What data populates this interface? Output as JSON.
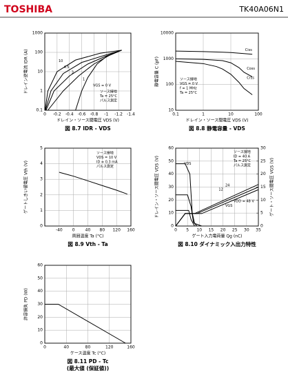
{
  "header": {
    "brand": "TOSHIBA",
    "part": "TK40A06N1"
  },
  "chart_data": [
    {
      "type": "line",
      "title": "図 8.7  IDR - VDS",
      "x_label": "ドレイン・ソース間電圧  VDS  (V)",
      "y_label": "ドレイン逆電流  IDR  (A)",
      "xlim": [
        0,
        -1.4
      ],
      "xticks": [
        0,
        -0.2,
        -0.4,
        -0.6,
        -0.8,
        -1,
        -1.2,
        -1.4
      ],
      "ylim": [
        0.1,
        1000
      ],
      "yticks": [
        0.1,
        1,
        10,
        100,
        1000
      ],
      "ylog": true,
      "grid": true,
      "series": [
        {
          "color": "#000000",
          "x": [
            -0.005,
            -0.05,
            -0.2,
            -0.5,
            -0.9,
            -1.25
          ],
          "y": [
            0.1,
            1,
            10,
            40,
            90,
            130
          ]
        },
        {
          "color": "#000000",
          "x": [
            -0.01,
            -0.1,
            -0.3,
            -0.6,
            -1.0,
            -1.25
          ],
          "y": [
            0.1,
            1,
            8,
            30,
            75,
            130
          ]
        },
        {
          "color": "#000000",
          "x": [
            -0.02,
            -0.15,
            -0.4,
            -0.7,
            -1.0,
            -1.25
          ],
          "y": [
            0.1,
            1,
            6,
            25,
            65,
            130
          ]
        },
        {
          "color": "#000000",
          "x": [
            -0.05,
            -0.3,
            -0.55,
            -0.8,
            -1.05,
            -1.25
          ],
          "y": [
            0.1,
            1,
            6,
            25,
            70,
            130
          ]
        },
        {
          "color": "#000000",
          "x": [
            -0.5,
            -0.6,
            -0.7,
            -0.85,
            -1.0,
            -1.25
          ],
          "y": [
            0.1,
            1,
            5,
            25,
            60,
            130
          ]
        }
      ],
      "annotations": [
        "10",
        "4.5",
        "3",
        "1",
        "VGS = 0 V"
      ],
      "notes": [
        "ソース接地",
        "Ta = 25°C",
        "パルス測定"
      ]
    },
    {
      "type": "line",
      "title": "図 8.8  静電容量 - VDS",
      "x_label": "ドレイン・ソース間電圧  VDS  (V)",
      "y_label": "静電容量  C  (pF)",
      "xlim": [
        0.1,
        100
      ],
      "xticks": [
        0.1,
        1,
        10,
        100
      ],
      "xlog": true,
      "ylim": [
        10,
        10000
      ],
      "yticks": [
        10,
        100,
        1000,
        10000
      ],
      "ylog": true,
      "grid": true,
      "series": [
        {
          "color": "#000000",
          "x": [
            0.1,
            1,
            5,
            10,
            30,
            60
          ],
          "y": [
            2000,
            1900,
            1800,
            1750,
            1600,
            1500
          ]
        },
        {
          "color": "#000000",
          "x": [
            0.1,
            1,
            5,
            10,
            20,
            30,
            60
          ],
          "y": [
            1000,
            950,
            850,
            700,
            450,
            300,
            200
          ]
        },
        {
          "color": "#000000",
          "x": [
            0.1,
            1,
            3,
            5,
            10,
            20,
            30,
            60
          ],
          "y": [
            800,
            650,
            500,
            400,
            250,
            120,
            70,
            40
          ]
        }
      ],
      "annotations": [
        "Ciss",
        "Coss",
        "Crss"
      ],
      "notes": [
        "ソース接地",
        "VGS = 0 V",
        "f = 1 MHz",
        "Ta = 25°C"
      ]
    },
    {
      "type": "line",
      "title": "図 8.9  Vth - Ta",
      "x_label": "周囲温度  Ta  (°C)",
      "y_label": "ゲートしきい値電圧  Vth  (V)",
      "xlim": [
        -80,
        160
      ],
      "xticks": [
        -40,
        0,
        40,
        80,
        120,
        160
      ],
      "ylim": [
        0,
        5
      ],
      "yticks": [
        0,
        1,
        2,
        3,
        4,
        5
      ],
      "grid": true,
      "series": [
        {
          "color": "#000000",
          "x": [
            -40,
            0,
            40,
            80,
            120,
            150
          ],
          "y": [
            3.45,
            3.2,
            2.9,
            2.6,
            2.3,
            2.05
          ]
        }
      ],
      "annotations": [],
      "notes": [
        "ソース接地",
        "VDS = 10 V",
        "ID = 0.3 mA",
        "パルス測定"
      ]
    },
    {
      "type": "line",
      "title": "図 8.10  ダイナミック入出力特性",
      "x_label": "ゲート入力電荷量  Qg  (nC)",
      "y_label": "ドレイン・ソース間電圧  VDS  (V)",
      "y2_label": "ゲート・ソース間電圧  VGS  (V)",
      "xlim": [
        0,
        35
      ],
      "xticks": [
        0,
        5,
        10,
        15,
        20,
        25,
        30,
        35
      ],
      "ylim": [
        0,
        60
      ],
      "yticks": [
        0,
        10,
        20,
        30,
        40,
        50,
        60
      ],
      "y2lim": [
        0,
        30
      ],
      "y2ticks": [
        0,
        5,
        10,
        15,
        20,
        25,
        30
      ],
      "grid": true,
      "series": [
        {
          "color": "#000000",
          "x": [
            0,
            4,
            6,
            7,
            8,
            11
          ],
          "y": [
            48,
            48,
            40,
            10,
            2,
            0
          ]
        },
        {
          "color": "#000000",
          "x": [
            0,
            5,
            6.5,
            7.5,
            9
          ],
          "y": [
            24,
            24,
            15,
            3,
            0
          ]
        },
        {
          "color": "#000000",
          "x": [
            0,
            5.5,
            6.5,
            8
          ],
          "y": [
            12,
            12,
            5,
            0
          ]
        },
        {
          "color": "#000000",
          "axis": "y2",
          "x": [
            0,
            4,
            11,
            35
          ],
          "y": [
            0,
            4.8,
            4.8,
            14
          ]
        },
        {
          "color": "#000000",
          "axis": "y2",
          "x": [
            0,
            4,
            9,
            35
          ],
          "y": [
            0,
            4.8,
            4.8,
            15
          ]
        },
        {
          "color": "#000000",
          "axis": "y2",
          "x": [
            0,
            4,
            8,
            35
          ],
          "y": [
            0,
            4.8,
            4.8,
            16
          ]
        }
      ],
      "annotations": [
        "VDS",
        "VGS",
        "24",
        "12",
        "VDD = 48 V"
      ],
      "notes": [
        "ソース接地",
        "ID = 40 A",
        "Ta = 25°C",
        "パルス測定"
      ]
    },
    {
      "type": "line",
      "title": "図 8.11  PD - Tc",
      "subtitle": "(最大値 (保証値))",
      "x_label": "ケース温度  Tc  (°C)",
      "y_label": "許容損失  PD  (W)",
      "xlim": [
        0,
        160
      ],
      "xticks": [
        0,
        40,
        80,
        120,
        160
      ],
      "ylim": [
        0,
        60
      ],
      "yticks": [
        0,
        10,
        20,
        30,
        40,
        50,
        60
      ],
      "grid": true,
      "series": [
        {
          "color": "#000000",
          "x": [
            0,
            25,
            150
          ],
          "y": [
            30,
            30,
            0
          ]
        }
      ],
      "annotations": [],
      "notes": []
    }
  ]
}
